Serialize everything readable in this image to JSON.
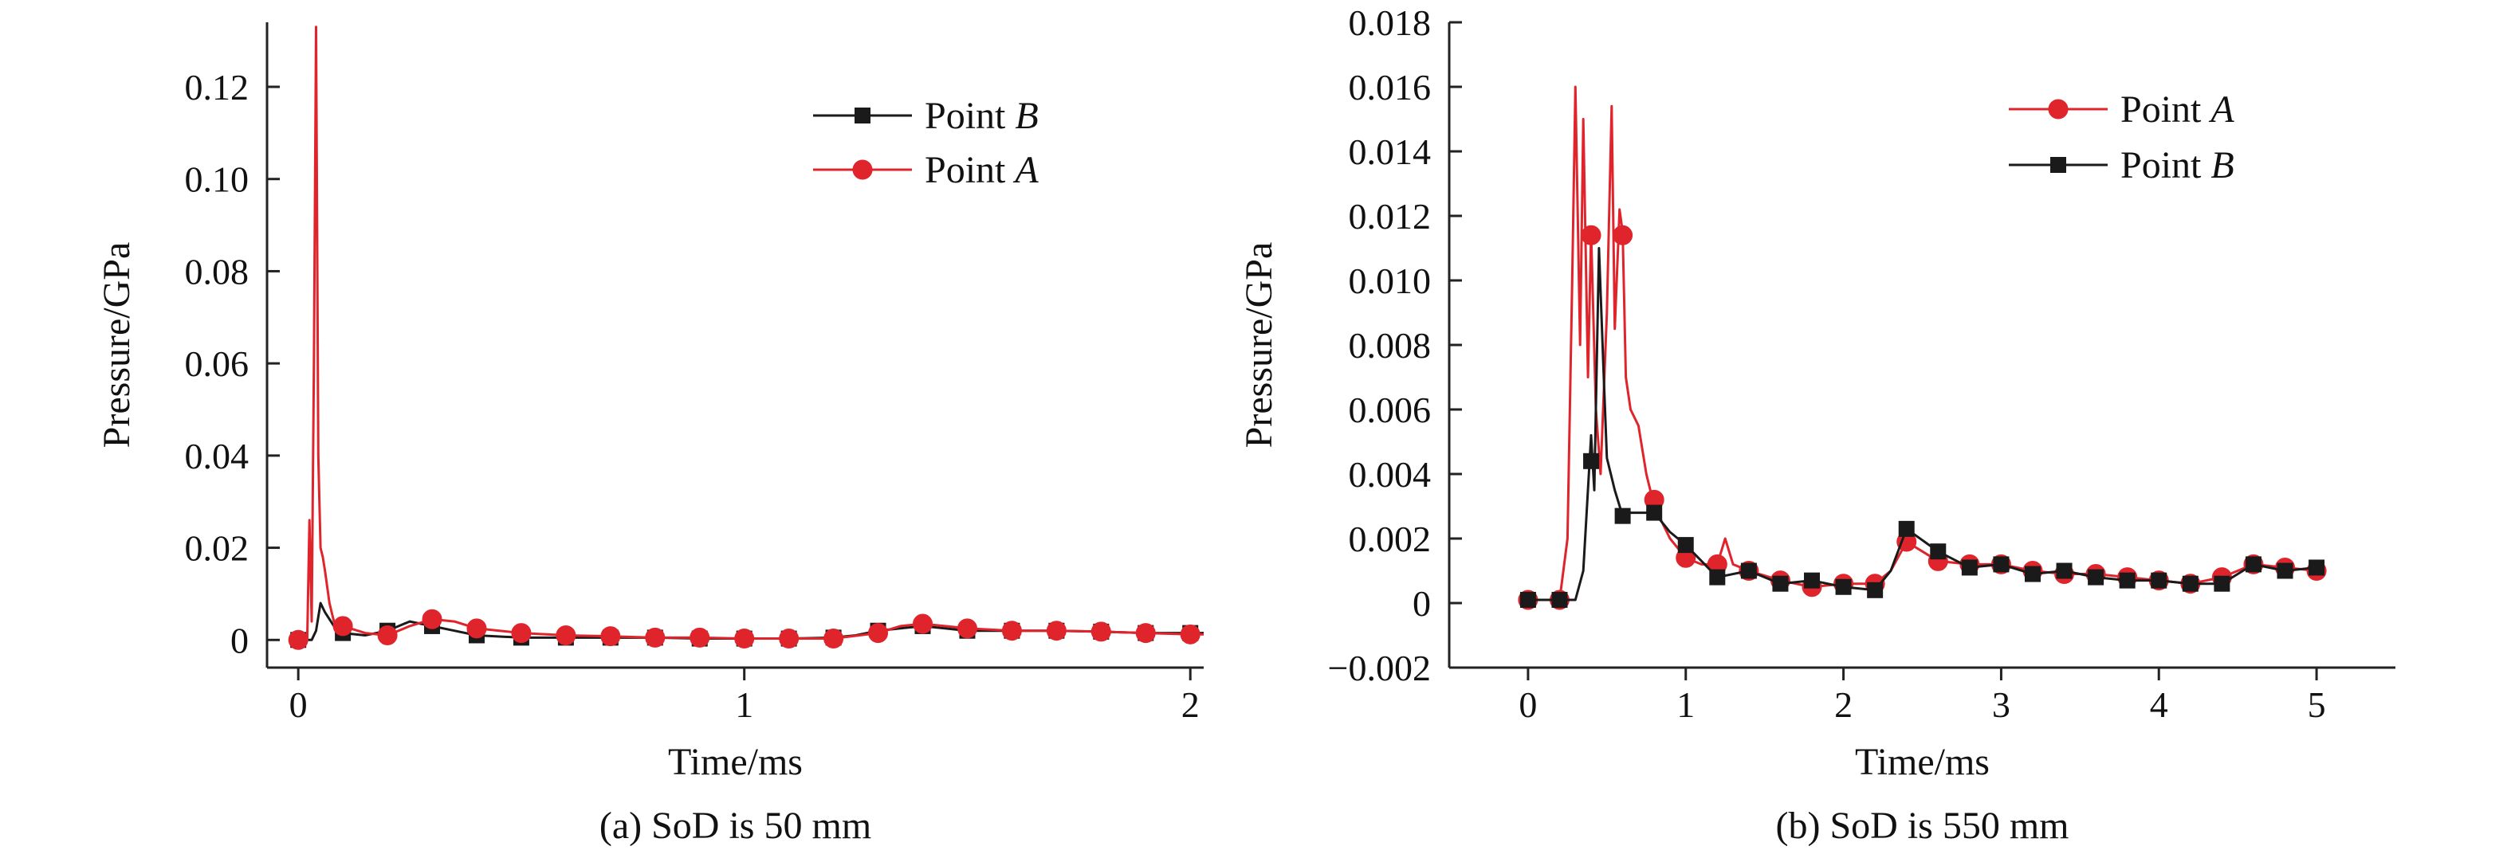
{
  "colors": {
    "point_a": "#e0242c",
    "point_b": "#1a1a1a",
    "axis": "#222222"
  },
  "chart_data": [
    {
      "type": "line",
      "caption": "(a) SoD is 50 mm",
      "xlabel": "Time/ms",
      "ylabel": "Pressure/GPa",
      "xlim": [
        -0.07,
        2.03
      ],
      "ylim": [
        -0.006,
        0.134
      ],
      "xticks": [
        0,
        1,
        2
      ],
      "xtick_labels": [
        "0",
        "1",
        "2"
      ],
      "yticks": [
        0,
        0.02,
        0.04,
        0.06,
        0.08,
        0.1,
        0.12
      ],
      "ytick_labels": [
        "0",
        "0.02",
        "0.04",
        "0.06",
        "0.08",
        "0.10",
        "0.12"
      ],
      "legend_placement": "top-right",
      "series": [
        {
          "name": "Point B",
          "name_base": "Point ",
          "name_italic": "B",
          "color": "#1a1a1a",
          "marker": "square",
          "x": [
            0,
            0.03,
            0.04,
            0.05,
            0.06,
            0.08,
            0.1,
            0.15,
            0.2,
            0.25,
            0.3,
            0.35,
            0.4,
            0.5,
            0.6,
            0.7,
            0.8,
            0.9,
            1.0,
            1.1,
            1.2,
            1.25,
            1.3,
            1.35,
            1.4,
            1.45,
            1.5,
            1.6,
            1.7,
            1.8,
            1.9,
            2.0,
            2.03
          ],
          "y": [
            0,
            0,
            0.002,
            0.008,
            0.006,
            0.003,
            0.0015,
            0.001,
            0.002,
            0.004,
            0.003,
            0.002,
            0.001,
            0.0005,
            0.0005,
            0.0005,
            0.0005,
            0.0003,
            0.0003,
            0.0003,
            0.0005,
            0.001,
            0.002,
            0.0025,
            0.003,
            0.0025,
            0.002,
            0.002,
            0.002,
            0.0018,
            0.0015,
            0.0015,
            0.0015
          ],
          "marker_x": [
            0,
            0.1,
            0.2,
            0.3,
            0.4,
            0.5,
            0.6,
            0.7,
            0.8,
            0.9,
            1.0,
            1.1,
            1.2,
            1.3,
            1.4,
            1.5,
            1.6,
            1.7,
            1.8,
            1.9,
            2.0
          ],
          "marker_y": [
            0,
            0.0015,
            0.002,
            0.003,
            0.001,
            0.0005,
            0.0005,
            0.0005,
            0.0005,
            0.0003,
            0.0003,
            0.0003,
            0.0005,
            0.002,
            0.003,
            0.002,
            0.002,
            0.002,
            0.0018,
            0.0015,
            0.0015
          ]
        },
        {
          "name": "Point A",
          "name_base": "Point ",
          "name_italic": "A",
          "color": "#e0242c",
          "marker": "circle",
          "x": [
            0,
            0.02,
            0.025,
            0.03,
            0.035,
            0.04,
            0.045,
            0.05,
            0.055,
            0.06,
            0.07,
            0.08,
            0.1,
            0.15,
            0.2,
            0.25,
            0.3,
            0.35,
            0.4,
            0.5,
            0.6,
            0.7,
            0.8,
            0.9,
            1.0,
            1.1,
            1.2,
            1.3,
            1.35,
            1.4,
            1.45,
            1.5,
            1.6,
            1.7,
            1.8,
            1.9,
            2.0,
            2.03
          ],
          "y": [
            0,
            0,
            0.026,
            0.004,
            0.06,
            0.133,
            0.04,
            0.02,
            0.018,
            0.015,
            0.008,
            0.004,
            0.003,
            0.0015,
            0.001,
            0.003,
            0.0045,
            0.004,
            0.0025,
            0.0015,
            0.001,
            0.0008,
            0.0005,
            0.0005,
            0.0003,
            0.0003,
            0.0003,
            0.0015,
            0.003,
            0.0035,
            0.003,
            0.0025,
            0.002,
            0.002,
            0.0018,
            0.0015,
            0.0012,
            0.0012
          ],
          "marker_x": [
            0,
            0.1,
            0.2,
            0.3,
            0.4,
            0.5,
            0.6,
            0.7,
            0.8,
            0.9,
            1.0,
            1.1,
            1.2,
            1.3,
            1.4,
            1.5,
            1.6,
            1.7,
            1.8,
            1.9,
            2.0
          ],
          "marker_y": [
            0,
            0.003,
            0.001,
            0.0045,
            0.0025,
            0.0015,
            0.001,
            0.0008,
            0.0005,
            0.0005,
            0.0003,
            0.0003,
            0.0003,
            0.0015,
            0.0035,
            0.0025,
            0.002,
            0.002,
            0.0018,
            0.0015,
            0.0012
          ]
        }
      ]
    },
    {
      "type": "line",
      "caption": "(b) SoD is 550 mm",
      "xlabel": "Time/ms",
      "ylabel": "Pressure/GPa",
      "xlim": [
        -0.5,
        5.5
      ],
      "ylim": [
        -0.002,
        0.018
      ],
      "xticks": [
        0,
        1,
        2,
        3,
        4,
        5
      ],
      "xtick_labels": [
        "0",
        "1",
        "2",
        "3",
        "4",
        "5"
      ],
      "yticks": [
        -0.002,
        0,
        0.002,
        0.004,
        0.006,
        0.008,
        0.01,
        0.012,
        0.014,
        0.016,
        0.018
      ],
      "ytick_labels": [
        "−0.002",
        "0",
        "0.002",
        "0.004",
        "0.006",
        "0.008",
        "0.010",
        "0.012",
        "0.014",
        "0.016",
        "0.018"
      ],
      "legend_placement": "top-right",
      "series": [
        {
          "name": "Point A",
          "name_base": "Point ",
          "name_italic": "A",
          "color": "#e0242c",
          "marker": "circle",
          "x": [
            0,
            0.2,
            0.25,
            0.28,
            0.3,
            0.33,
            0.35,
            0.38,
            0.4,
            0.43,
            0.46,
            0.5,
            0.53,
            0.55,
            0.58,
            0.6,
            0.62,
            0.65,
            0.7,
            0.75,
            0.8,
            0.9,
            1.0,
            1.1,
            1.2,
            1.25,
            1.3,
            1.4,
            1.6,
            1.8,
            2.0,
            2.2,
            2.3,
            2.4,
            2.6,
            2.8,
            3.0,
            3.2,
            3.4,
            3.6,
            3.8,
            4.0,
            4.2,
            4.4,
            4.6,
            4.8,
            5.0
          ],
          "y": [
            0.0001,
            0.0001,
            0.002,
            0.01,
            0.016,
            0.008,
            0.015,
            0.007,
            0.0115,
            0.006,
            0.004,
            0.009,
            0.0154,
            0.0085,
            0.0122,
            0.0115,
            0.007,
            0.006,
            0.0055,
            0.004,
            0.003,
            0.002,
            0.0014,
            0.0012,
            0.0012,
            0.002,
            0.0012,
            0.001,
            0.0007,
            0.0005,
            0.0006,
            0.0006,
            0.001,
            0.0019,
            0.0013,
            0.0012,
            0.0012,
            0.001,
            0.0009,
            0.0009,
            0.0008,
            0.0007,
            0.0006,
            0.0008,
            0.0012,
            0.0011,
            0.001
          ],
          "marker_x": [
            0,
            0.2,
            0.4,
            0.6,
            0.8,
            1.0,
            1.2,
            1.4,
            1.6,
            1.8,
            2.0,
            2.2,
            2.4,
            2.6,
            2.8,
            3.0,
            3.2,
            3.4,
            3.6,
            3.8,
            4.0,
            4.2,
            4.4,
            4.6,
            4.8,
            5.0
          ],
          "marker_y": [
            0.0001,
            0.0001,
            0.0114,
            0.0114,
            0.0032,
            0.0014,
            0.0012,
            0.001,
            0.0007,
            0.0005,
            0.0006,
            0.0006,
            0.0019,
            0.0013,
            0.0012,
            0.0012,
            0.001,
            0.0009,
            0.0009,
            0.0008,
            0.0007,
            0.0006,
            0.0008,
            0.0012,
            0.0011,
            0.001
          ]
        },
        {
          "name": "Point B",
          "name_base": "Point ",
          "name_italic": "B",
          "color": "#1a1a1a",
          "marker": "square",
          "x": [
            0,
            0.3,
            0.35,
            0.4,
            0.42,
            0.45,
            0.48,
            0.5,
            0.55,
            0.6,
            0.65,
            0.7,
            0.8,
            0.9,
            1.0,
            1.2,
            1.4,
            1.6,
            1.8,
            2.0,
            2.2,
            2.3,
            2.4,
            2.6,
            2.8,
            3.0,
            3.2,
            3.4,
            3.6,
            3.8,
            4.0,
            4.2,
            4.4,
            4.6,
            4.8,
            5.0
          ],
          "y": [
            0.0001,
            0.0001,
            0.001,
            0.0052,
            0.0035,
            0.011,
            0.007,
            0.0045,
            0.0035,
            0.0027,
            0.0028,
            0.0028,
            0.0028,
            0.0022,
            0.0018,
            0.0008,
            0.001,
            0.0006,
            0.0007,
            0.0005,
            0.0004,
            0.001,
            0.0023,
            0.0016,
            0.0011,
            0.0012,
            0.0009,
            0.001,
            0.0008,
            0.0007,
            0.0007,
            0.0006,
            0.0006,
            0.0012,
            0.001,
            0.0011
          ],
          "marker_x": [
            0,
            0.2,
            0.4,
            0.6,
            0.8,
            1.0,
            1.2,
            1.4,
            1.6,
            1.8,
            2.0,
            2.2,
            2.4,
            2.6,
            2.8,
            3.0,
            3.2,
            3.4,
            3.6,
            3.8,
            4.0,
            4.2,
            4.4,
            4.6,
            4.8,
            5.0
          ],
          "marker_y": [
            0.0001,
            0.0001,
            0.0044,
            0.0027,
            0.0028,
            0.0018,
            0.0008,
            0.001,
            0.0006,
            0.0007,
            0.0005,
            0.0004,
            0.0023,
            0.0016,
            0.0011,
            0.0012,
            0.0009,
            0.001,
            0.0008,
            0.0007,
            0.0007,
            0.0006,
            0.0006,
            0.0012,
            0.001,
            0.0011
          ]
        }
      ]
    }
  ]
}
